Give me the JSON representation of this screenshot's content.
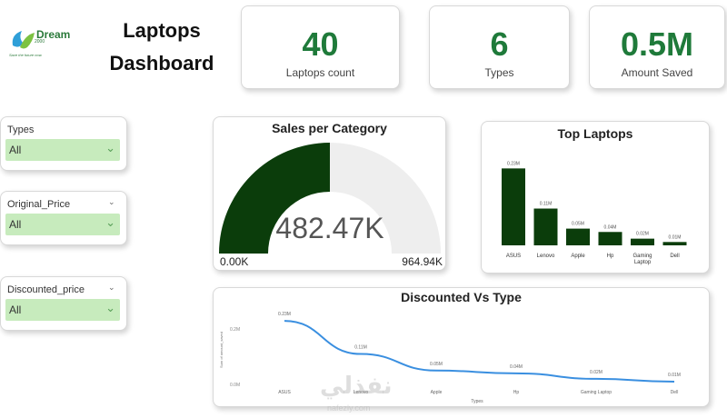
{
  "logo": {
    "name": "Dream",
    "sub": "2000",
    "tagline": "Save the future now."
  },
  "title_line1": "Laptops",
  "title_line2": "Dashboard",
  "kpis": [
    {
      "value": "40",
      "label": "Laptops count"
    },
    {
      "value": "6",
      "label": "Types"
    },
    {
      "value": "0.5M",
      "label": "Amount Saved"
    }
  ],
  "slicers": [
    {
      "label": "Types",
      "value": "All",
      "chevron": false
    },
    {
      "label": "Original_Price",
      "value": "All",
      "chevron": true
    },
    {
      "label": "Discounted_price",
      "value": "All",
      "chevron": true
    }
  ],
  "gauge": {
    "title": "Sales per Category",
    "value_label": "482.47K",
    "min_label": "0.00K",
    "max_label": "964.94K",
    "fraction": 0.5,
    "fill_color": "#0b3d0b",
    "track_color": "#eeeeee"
  },
  "chart_data": [
    {
      "type": "bar",
      "title": "Top Laptops",
      "categories": [
        "ASUS",
        "Lenovo",
        "Apple",
        "Hp",
        "Gaming Laptop",
        "Dell"
      ],
      "values": [
        0.23,
        0.11,
        0.05,
        0.04,
        0.02,
        0.01
      ],
      "data_labels": [
        "0.23M",
        "0.11M",
        "0.05M",
        "0.04M",
        "0.02M",
        "0.01M"
      ],
      "ylim": [
        0,
        0.25
      ],
      "color": "#0b3d0b"
    },
    {
      "type": "line",
      "title": "Discounted Vs Type",
      "categories": [
        "ASUS",
        "Lenovo",
        "Apple",
        "Hp",
        "Gaming Laptop",
        "Dell"
      ],
      "values": [
        0.23,
        0.11,
        0.05,
        0.04,
        0.02,
        0.01
      ],
      "data_labels": [
        "0.23M",
        "0.11M",
        "0.05M",
        "0.04M",
        "0.02M",
        "0.01M"
      ],
      "xlabel": "Types",
      "ylabel": "Sum of amount_saved",
      "ytick_labels": [
        "0.2M",
        "0.0M"
      ],
      "yticks": [
        0.2,
        0.0
      ],
      "ylim": [
        0,
        0.25
      ],
      "color": "#3a8fe0"
    }
  ],
  "watermark": {
    "text": "نفذلي",
    "sub": "nafezly.com"
  }
}
